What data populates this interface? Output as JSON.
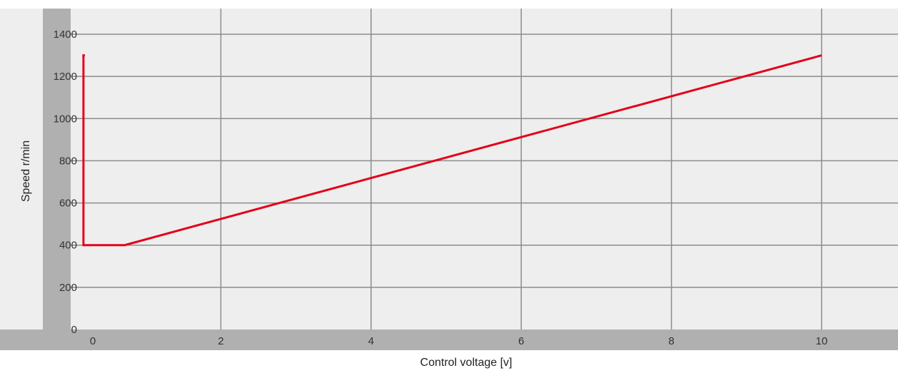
{
  "chart_data": {
    "type": "line",
    "title": "",
    "xlabel": "Control voltage   [v]",
    "ylabel": "Speed r/min",
    "xlim": [
      0,
      10
    ],
    "ylim": [
      0,
      1400
    ],
    "x_ticks": [
      0,
      2,
      4,
      6,
      8,
      10
    ],
    "y_ticks": [
      0,
      200,
      400,
      600,
      800,
      1000,
      1200,
      1400
    ],
    "grid": true,
    "legend": "none",
    "series": [
      {
        "color": "#e3001b",
        "points": [
          {
            "x": -0.1,
            "y": 1300
          },
          {
            "x": 0.17,
            "y": 1300
          },
          {
            "x": 0.17,
            "y": 400
          },
          {
            "x": 0.72,
            "y": 400
          },
          {
            "x": 10,
            "y": 1300
          }
        ]
      }
    ],
    "colors": {
      "plot_background": "#eeeeee",
      "axis_band": "#b0b0b0",
      "grid": "#8c8c8c",
      "line": "#e3001b"
    }
  }
}
